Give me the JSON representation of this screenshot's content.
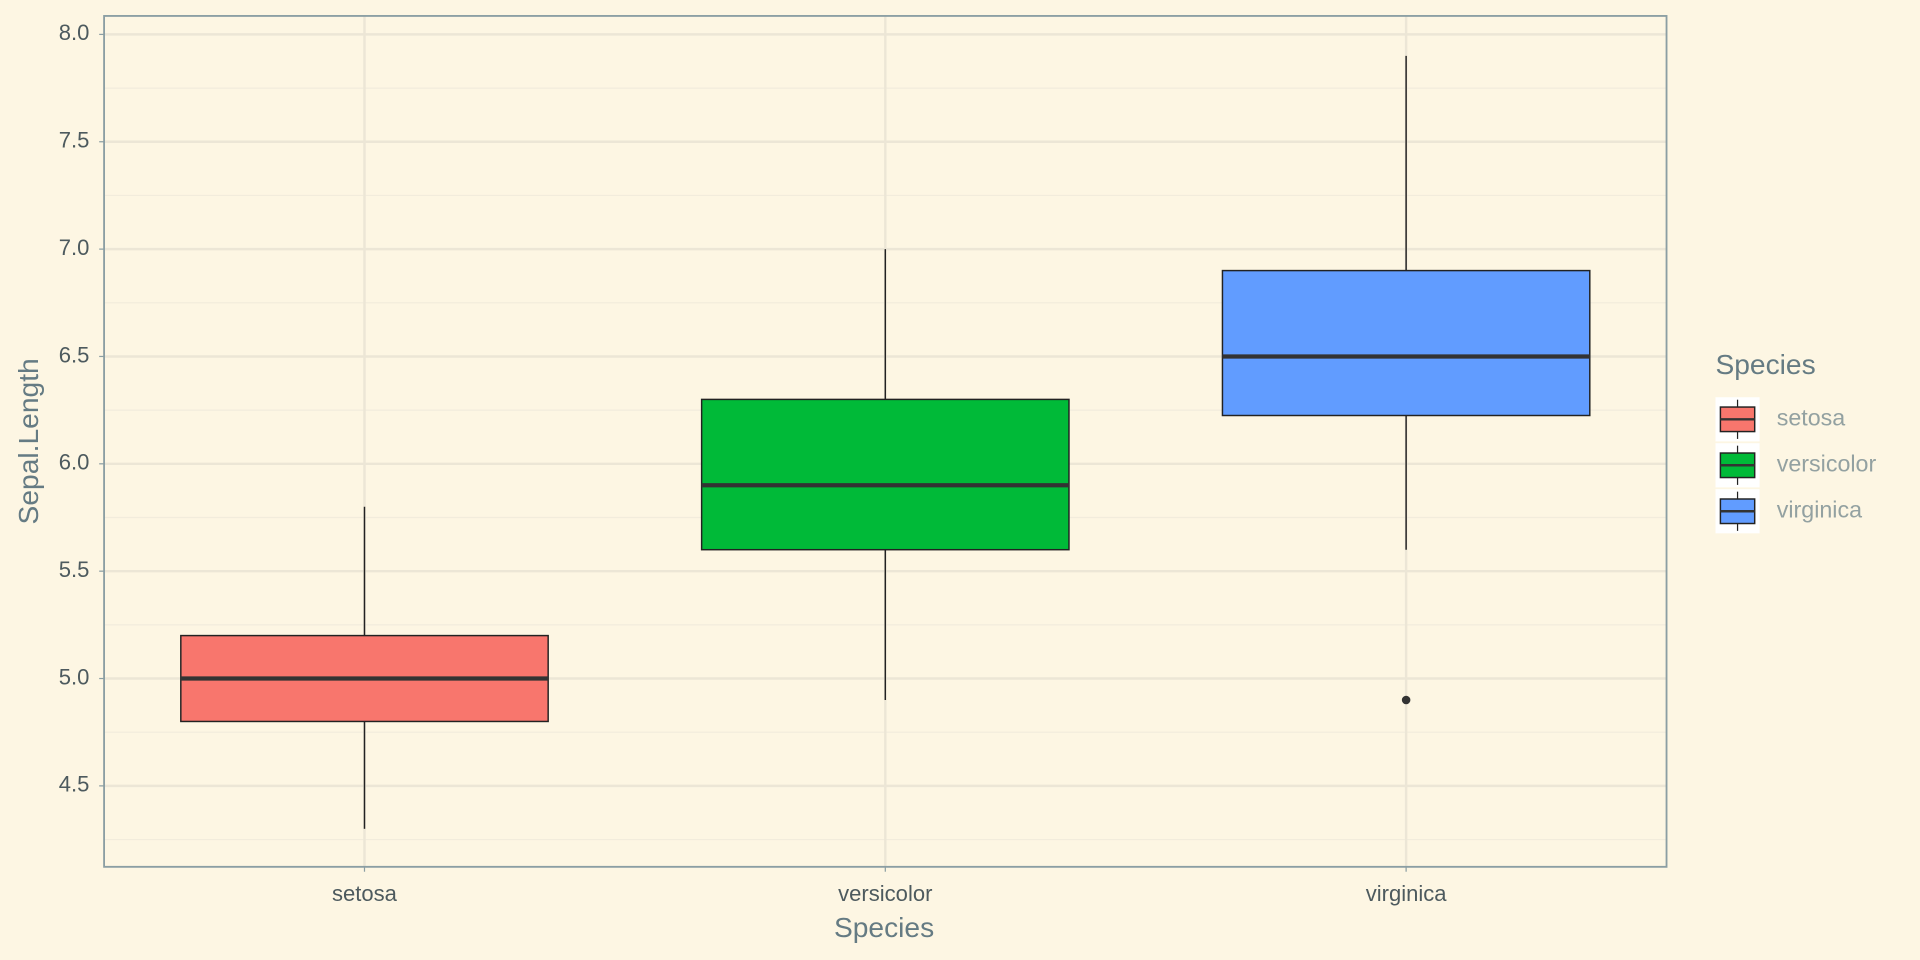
{
  "chart_data": {
    "type": "box",
    "x_label": "Species",
    "y_label": "Sepal.Length",
    "legend_title": "Species",
    "series": [
      {
        "name": "setosa",
        "color": "#F8766D",
        "min": 4.3,
        "q1": 4.8,
        "median": 5.0,
        "q3": 5.2,
        "max": 5.8,
        "outliers": []
      },
      {
        "name": "versicolor",
        "color": "#00BA38",
        "min": 4.9,
        "q1": 5.6,
        "median": 5.9,
        "q3": 6.3,
        "max": 7.0,
        "outliers": []
      },
      {
        "name": "virginica",
        "color": "#619CFF",
        "min": 5.6,
        "q1": 6.225,
        "median": 6.5,
        "q3": 6.9,
        "max": 7.9,
        "outliers": [
          4.9
        ]
      }
    ],
    "ylim": [
      4.123,
      8.086
    ],
    "yticks": [
      4.5,
      {
        "value": 5,
        "label": "5.0"
      },
      5.5,
      {
        "value": 6,
        "label": "6.0"
      },
      6.5,
      {
        "value": 7,
        "label": "7.0"
      },
      7.5,
      {
        "value": 8,
        "label": "8.0"
      }
    ],
    "grid": true,
    "legend_position": "right"
  }
}
